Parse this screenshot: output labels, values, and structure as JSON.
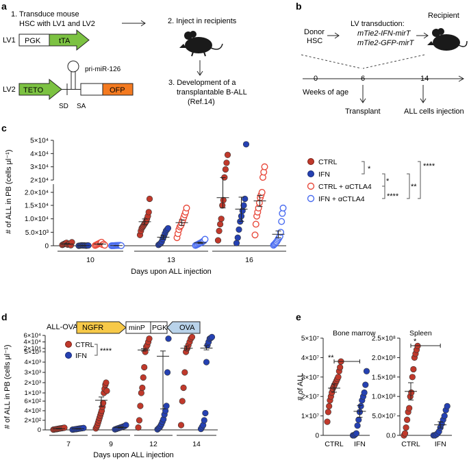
{
  "panel_labels": {
    "a": "a",
    "b": "b",
    "c": "c",
    "d": "d",
    "e": "e"
  },
  "panel_a": {
    "step1_line1": "1. Transduce mouse",
    "step1_line2": "HSC with LV1 and LV2",
    "step2": "2. Inject in recipients",
    "step3_line1": "3. Development of a",
    "step3_line2": "transplantable B-ALL",
    "step3_line3": "(Ref.14)",
    "lv1": "LV1",
    "lv2": "LV2",
    "pgk": "PGK",
    "tta": "tTA",
    "teto": "TETO",
    "ofp": "OFP",
    "mirna": "pri-miR-126",
    "sd": "SD",
    "sa": "SA",
    "colors": {
      "green": "#7cc242",
      "orange": "#f47a20",
      "mouse": "#1a1a1a"
    }
  },
  "panel_b": {
    "donor_line1": "Donor",
    "donor_line2": "HSC",
    "lv_line1": "LV transduction:",
    "lv_line2": "mTie2-IFN-mirT",
    "lv_line3": "mTie2-GFP-mirT",
    "recipient": "Recipient",
    "week0": "0",
    "week6": "6",
    "week14": "14",
    "weeks_label": "Weeks of age",
    "transplant": "Transplant",
    "injection": "ALL cells injection"
  },
  "legend_c": {
    "items": [
      {
        "label": "CTRL",
        "style": "filled",
        "color": "#c0392b"
      },
      {
        "label": "IFN",
        "style": "filled",
        "color": "#2541b2"
      },
      {
        "label": "CTRL + αCTLA4",
        "style": "open",
        "color": "#e84a3c"
      },
      {
        "label": "IFN + αCTLA4",
        "style": "open",
        "color": "#4a6cf0"
      }
    ],
    "sig": {
      "s1": "*",
      "s2": "*",
      "s3": "****",
      "s4": "**",
      "s5": "****"
    }
  },
  "panel_d_construct": {
    "title": "ALL-OVA",
    "ngfr": "NGFR",
    "minp": "minP",
    "pgk": "PGK",
    "ova": "OVA",
    "colors": {
      "ngfr": "#f7c948",
      "ova": "#b9d3ea"
    }
  },
  "legend_d": {
    "ctrl": "CTRL",
    "ifn": "IFN",
    "sig": "****"
  },
  "panel_e": {
    "sig_bm": "**",
    "sig_sp": "*"
  },
  "chart_data": [
    {
      "panel": "c",
      "type": "scatter",
      "xlabel": "Days upon ALL injection",
      "ylabel": "# of ALL in PB (cells μl⁻¹)",
      "categories": [
        "10",
        "13",
        "16"
      ],
      "ylim": [
        0,
        50000
      ],
      "ytick_labels": [
        "0",
        "5.0×10³",
        "1.0×10⁴",
        "1.5×10⁴",
        "2.0×10⁴",
        "2×10⁴",
        "3×10⁴",
        "4×10⁴",
        "5×10⁴"
      ],
      "series": [
        {
          "name": "CTRL",
          "day10": [
            300,
            500,
            700,
            900,
            1100,
            400,
            600,
            800,
            200,
            1300
          ],
          "day13": [
            4000,
            5500,
            6500,
            7000,
            7500,
            8000,
            8500,
            9000,
            10000,
            11000,
            12500,
            17500
          ],
          "day16": [
            2000,
            5500,
            8000,
            10000,
            15000,
            17000,
            22000,
            28000,
            33000,
            39000
          ]
        },
        {
          "name": "IFN",
          "day10": [
            0,
            50,
            100,
            150,
            80,
            120,
            60,
            30,
            90,
            110
          ],
          "day13": [
            300,
            600,
            900,
            1500,
            2500,
            3500,
            4500,
            5500,
            6000,
            6500
          ],
          "day16": [
            1000,
            3000,
            6000,
            9000,
            11000,
            13000,
            15000,
            17500,
            47000
          ]
        },
        {
          "name": "CTRL + αCTLA4",
          "day10": [
            100,
            300,
            500,
            700,
            900,
            1100,
            1300,
            400,
            600,
            200
          ],
          "day13": [
            3000,
            4500,
            6000,
            7000,
            7500,
            8500,
            9500,
            10500,
            11500,
            12500,
            14000
          ],
          "day16": [
            4000,
            8000,
            11000,
            12500,
            14000,
            16000,
            18000,
            19000,
            20000,
            22000,
            26000,
            30000
          ]
        },
        {
          "name": "IFN + αCTLA4",
          "day10": [
            0,
            20,
            40,
            60,
            80,
            100,
            120,
            140,
            160,
            30
          ],
          "day13": [
            100,
            300,
            500,
            700,
            900,
            1100,
            1300,
            1600,
            1900,
            2400
          ],
          "day16": [
            200,
            500,
            800,
            1200,
            1500,
            2000,
            2500,
            3000,
            3500,
            5000,
            9000,
            12000,
            14000
          ]
        }
      ]
    },
    {
      "panel": "d",
      "type": "scatter",
      "xlabel": "Days upon ALL injection",
      "ylabel": "# of ALL in PB (cells μl⁻¹)",
      "categories": [
        "7",
        "9",
        "12",
        "14"
      ],
      "ytick_labels": [
        "0",
        "2×10²",
        "4×10²",
        "6×10²",
        "1×10³",
        "2×10³",
        "3×10³",
        "4×10³",
        "5×10³",
        "2×10⁴",
        "4×10⁴",
        "6×10⁴"
      ],
      "series": [
        {
          "name": "CTRL",
          "day7": [
            5,
            10,
            15,
            20,
            25,
            30,
            35,
            40,
            45
          ],
          "day9": [
            30,
            60,
            100,
            150,
            200,
            250,
            300,
            350,
            400,
            480,
            560,
            1000,
            1400,
            1800,
            2000,
            1200
          ],
          "day12": [
            50,
            200,
            500,
            1000,
            1500,
            2500,
            3500,
            5000,
            25000,
            30000,
            40000,
            50000
          ],
          "day14": [
            100,
            600,
            1500,
            3000,
            5000,
            20000,
            30000,
            40000,
            50000,
            55000
          ]
        },
        {
          "name": "IFN",
          "day7": [
            5,
            10,
            15,
            20,
            25,
            30,
            35,
            40
          ],
          "day9": [
            10,
            20,
            30,
            40,
            50,
            60,
            70,
            80,
            100
          ],
          "day12": [
            10,
            30,
            50,
            80,
            120,
            170,
            220,
            320,
            400,
            500,
            3000,
            50000
          ],
          "day14": [
            20,
            60,
            100,
            200,
            350,
            4000,
            30000,
            40000,
            50000,
            52000,
            55000
          ]
        }
      ]
    },
    {
      "panel": "e-bone-marrow",
      "type": "scatter",
      "title": "Bone marrow",
      "ylabel": "# of ALL",
      "categories": [
        "CTRL",
        "IFN"
      ],
      "ylim": [
        0,
        50000000
      ],
      "ytick_labels": [
        "0",
        "1×10⁷",
        "2×10⁷",
        "3×10⁷",
        "4×10⁷",
        "5×10⁷"
      ],
      "series": [
        {
          "name": "CTRL",
          "values": [
            7000000,
            12000000,
            15000000,
            18000000,
            20000000,
            22000000,
            24000000,
            25000000,
            26000000,
            27000000,
            28000000,
            29000000,
            30000000,
            33000000,
            35000000,
            38000000
          ]
        },
        {
          "name": "IFN",
          "values": [
            0,
            0,
            500000,
            1000000,
            5000000,
            8000000,
            12000000,
            15000000,
            18000000,
            20000000,
            22000000,
            26000000,
            33000000
          ]
        }
      ]
    },
    {
      "panel": "e-spleen",
      "type": "scatter",
      "title": "Spleen",
      "categories": [
        "CTRL",
        "IFN"
      ],
      "ylim": [
        0,
        250000000
      ],
      "ytick_labels": [
        "0.0",
        "5.0×10⁷",
        "1.0×10⁸",
        "1.5×10⁸",
        "2.0×10⁸",
        "2.5×10⁸"
      ],
      "series": [
        {
          "name": "CTRL",
          "values": [
            0,
            5000000,
            20000000,
            40000000,
            60000000,
            70000000,
            100000000,
            110000000,
            150000000,
            170000000,
            200000000,
            210000000,
            220000000,
            230000000
          ]
        },
        {
          "name": "IFN",
          "values": [
            0,
            0,
            2000000,
            5000000,
            10000000,
            20000000,
            30000000,
            40000000,
            50000000,
            65000000,
            75000000
          ]
        }
      ]
    }
  ]
}
